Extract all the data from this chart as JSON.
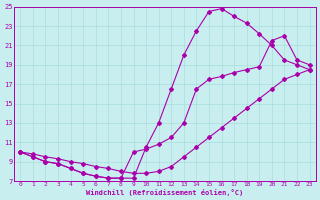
{
  "xlabel": "Windchill (Refroidissement éolien,°C)",
  "bg_color": "#c8eef0",
  "grid_color": "#aadddd",
  "line_color": "#aa00aa",
  "xlim": [
    -0.5,
    23.5
  ],
  "ylim": [
    7,
    25
  ],
  "xticks": [
    0,
    1,
    2,
    3,
    4,
    5,
    6,
    7,
    8,
    9,
    10,
    11,
    12,
    13,
    14,
    15,
    16,
    17,
    18,
    19,
    20,
    21,
    22,
    23
  ],
  "yticks": [
    7,
    9,
    11,
    13,
    15,
    17,
    19,
    21,
    23,
    25
  ],
  "line1_x": [
    0,
    1,
    2,
    3,
    4,
    5,
    6,
    7,
    8,
    9,
    10,
    11,
    12,
    13,
    14,
    15,
    16,
    17,
    18,
    19,
    20,
    21,
    22,
    23
  ],
  "line1_y": [
    10.0,
    9.5,
    9.0,
    8.8,
    8.3,
    7.8,
    7.5,
    7.3,
    7.3,
    7.3,
    10.5,
    13.0,
    16.5,
    20.0,
    22.5,
    24.5,
    24.8,
    24.0,
    23.3,
    22.2,
    21.0,
    19.5,
    19.0,
    18.5
  ],
  "line2_x": [
    0,
    1,
    2,
    3,
    4,
    5,
    6,
    7,
    8,
    9,
    10,
    11,
    12,
    13,
    14,
    15,
    16,
    17,
    18,
    19,
    20,
    21,
    22,
    23
  ],
  "line2_y": [
    10.0,
    9.8,
    9.5,
    9.3,
    9.0,
    8.8,
    8.5,
    8.3,
    8.0,
    7.8,
    7.8,
    8.0,
    8.5,
    9.5,
    10.5,
    11.5,
    12.5,
    13.5,
    14.5,
    15.5,
    16.5,
    17.5,
    18.0,
    18.5
  ],
  "line3_x": [
    0,
    1,
    2,
    3,
    4,
    5,
    6,
    7,
    8,
    9,
    10,
    11,
    12,
    13,
    14,
    15,
    16,
    17,
    18,
    19,
    20,
    21,
    22,
    23
  ],
  "line3_y": [
    10.0,
    9.5,
    9.0,
    8.8,
    8.3,
    7.8,
    7.5,
    7.3,
    7.3,
    10.0,
    10.3,
    10.8,
    11.5,
    13.0,
    16.5,
    17.5,
    17.8,
    18.2,
    18.5,
    18.8,
    21.5,
    22.0,
    19.5,
    19.0
  ]
}
